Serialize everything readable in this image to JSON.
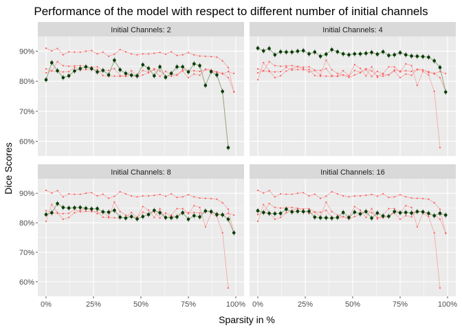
{
  "chart_data": {
    "type": "line",
    "title": "Performance of the model with respect to different number of initial channels",
    "xlabel": "Sparsity in %",
    "ylabel": "Dice Scores",
    "xlim": [
      0,
      100
    ],
    "ylim": [
      56,
      94
    ],
    "x_ticks": [
      {
        "value": 0,
        "label": "0%"
      },
      {
        "value": 25,
        "label": "25%"
      },
      {
        "value": 50,
        "label": "50%"
      },
      {
        "value": 75,
        "label": "75%"
      },
      {
        "value": 100,
        "label": "100%"
      }
    ],
    "y_ticks": [
      {
        "value": 60,
        "label": "60%"
      },
      {
        "value": 70,
        "label": "70%"
      },
      {
        "value": 80,
        "label": "80%"
      },
      {
        "value": 90,
        "label": "90%"
      }
    ],
    "grid": true,
    "legend": "none",
    "colors": {
      "highlight_line": "#8fa37a",
      "highlight_point": "#0a3d0a",
      "other_line": "#f4a3a3",
      "other_point": "#ff5a5a",
      "panel_bg": "#ebebeb",
      "strip_bg": "#d9d9d9",
      "grid": "#ffffff"
    },
    "x": [
      0,
      3,
      6,
      9,
      12,
      15,
      18,
      21,
      24,
      27,
      30,
      33,
      36,
      39,
      42,
      45,
      48,
      51,
      54,
      57,
      60,
      63,
      66,
      69,
      72,
      75,
      78,
      81,
      84,
      87,
      90,
      93,
      96,
      99
    ],
    "series": [
      {
        "name": "Initial Channels: 2",
        "values": [
          80.5,
          86.2,
          83.5,
          81.2,
          81.8,
          83.4,
          84.2,
          84.8,
          84.2,
          83.1,
          83.6,
          82.1,
          87.0,
          83.8,
          82.6,
          82.0,
          81.8,
          85.5,
          84.3,
          81.8,
          84.8,
          81.3,
          82.6,
          84.8,
          84.8,
          83.1,
          85.8,
          85.2,
          78.6,
          83.2,
          82.1,
          76.6,
          57.9,
          null
        ]
      },
      {
        "name": "Initial Channels: 4",
        "values": [
          91.0,
          90.1,
          90.9,
          88.8,
          89.8,
          89.7,
          89.7,
          90.0,
          90.2,
          89.1,
          89.7,
          88.3,
          89.0,
          90.5,
          89.8,
          89.1,
          88.8,
          89.1,
          89.1,
          89.3,
          89.6,
          89.0,
          89.8,
          88.6,
          88.8,
          89.5,
          88.8,
          88.4,
          88.3,
          88.2,
          88.0,
          86.8,
          84.6,
          76.4
        ]
      },
      {
        "name": "Initial Channels: 8",
        "values": [
          82.8,
          83.4,
          86.5,
          85.2,
          85.0,
          85.1,
          85.2,
          84.9,
          84.7,
          84.8,
          83.7,
          83.6,
          84.2,
          81.9,
          81.6,
          82.1,
          81.3,
          82.1,
          82.8,
          84.2,
          83.4,
          81.8,
          81.7,
          82.0,
          83.4,
          81.2,
          82.4,
          82.0,
          84.0,
          83.8,
          82.8,
          82.7,
          81.2,
          76.6
        ]
      },
      {
        "name": "Initial Channels: 16",
        "values": [
          84.1,
          83.5,
          83.2,
          83.1,
          83.2,
          84.6,
          83.7,
          83.9,
          83.8,
          83.9,
          81.9,
          81.7,
          81.7,
          81.6,
          81.8,
          83.5,
          81.8,
          83.6,
          83.0,
          83.8,
          81.6,
          83.3,
          82.3,
          82.2,
          83.8,
          83.4,
          83.5,
          83.3,
          83.8,
          83.7,
          83.2,
          82.4,
          83.2,
          82.6
        ]
      }
    ]
  }
}
